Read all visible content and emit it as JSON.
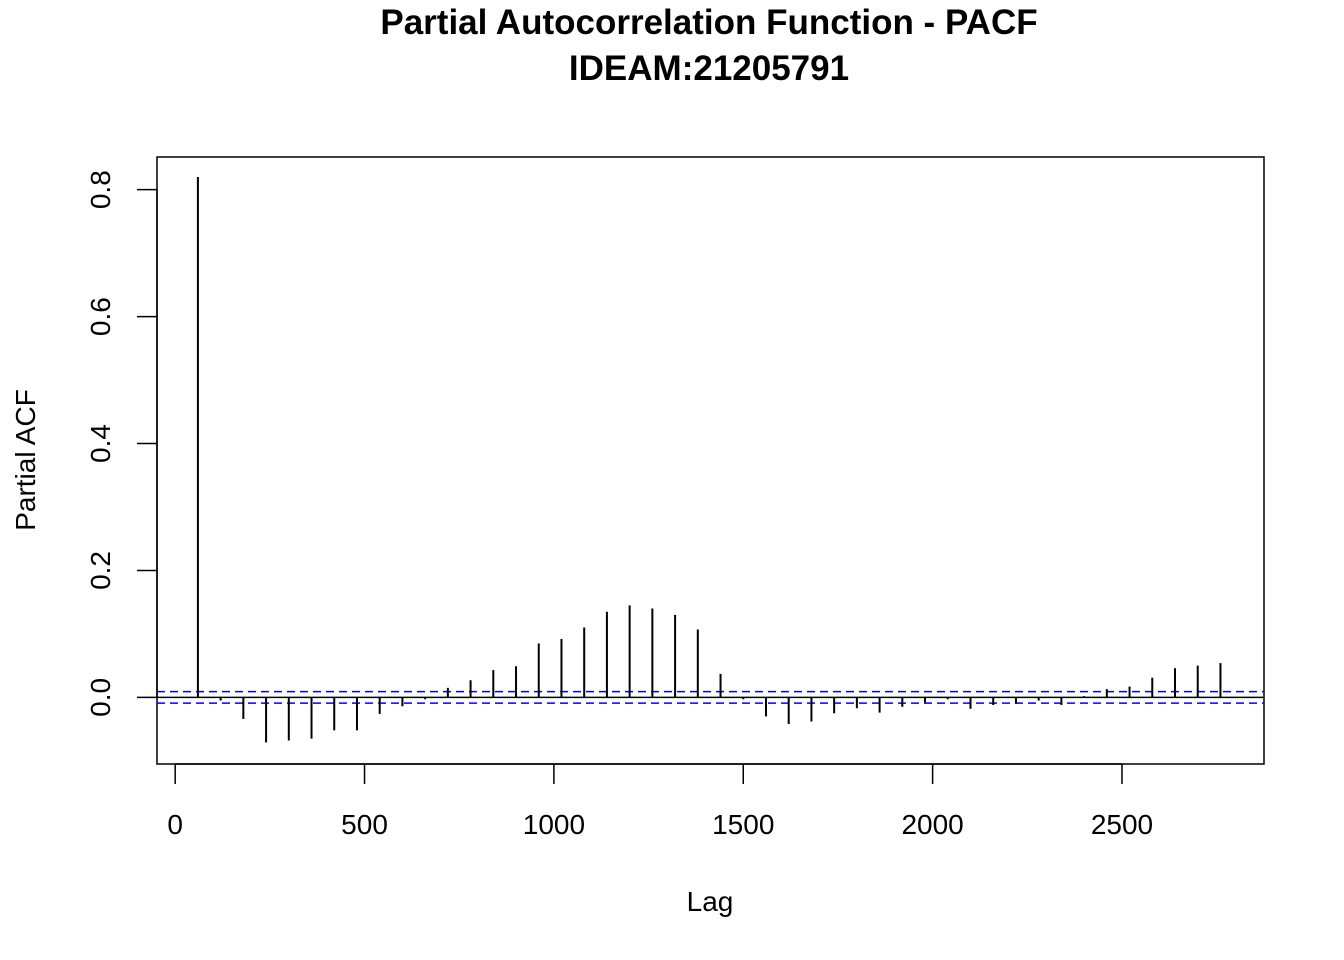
{
  "chart_data": {
    "type": "bar",
    "subtype": "pacf-spike",
    "title": "Partial Autocorrelation Function - PACF",
    "subtitle": "IDEAM:21205791",
    "xlabel": "Lag",
    "ylabel": "Partial ACF",
    "xlim": [
      -48,
      2875
    ],
    "ylim": [
      -0.105,
      0.8515
    ],
    "xticks": [
      0,
      500,
      1000,
      1500,
      2000,
      2500
    ],
    "xtick_labels": [
      "0",
      "500",
      "1000",
      "1500",
      "2000",
      "2500"
    ],
    "yticks": [
      0.0,
      0.2,
      0.4,
      0.6,
      0.8
    ],
    "ytick_labels": [
      "0.0",
      "0.2",
      "0.4",
      "0.6",
      "0.8"
    ],
    "confidence_band": [
      -0.009,
      0.009
    ],
    "band_color": "#0000ff",
    "spike_color": "#000000",
    "grid": false,
    "lags": [
      60,
      120,
      180,
      240,
      300,
      360,
      420,
      480,
      540,
      600,
      660,
      720,
      780,
      840,
      900,
      960,
      1020,
      1080,
      1140,
      1200,
      1260,
      1320,
      1380,
      1440,
      1500,
      1560,
      1620,
      1680,
      1740,
      1800,
      1860,
      1920,
      1980,
      2040,
      2100,
      2160,
      2220,
      2280,
      2340,
      2400,
      2460,
      2520,
      2580,
      2640,
      2700,
      2760
    ],
    "values": [
      0.82,
      -0.005,
      -0.034,
      -0.071,
      -0.068,
      -0.065,
      -0.052,
      -0.052,
      -0.026,
      -0.014,
      -0.003,
      0.015,
      0.027,
      0.043,
      0.049,
      0.085,
      0.092,
      0.11,
      0.135,
      0.145,
      0.14,
      0.13,
      0.107,
      0.037,
      -0.003,
      -0.03,
      -0.042,
      -0.038,
      -0.025,
      -0.017,
      -0.024,
      -0.015,
      -0.008,
      -0.003,
      -0.018,
      -0.012,
      -0.01,
      -0.005,
      -0.012,
      0.002,
      0.013,
      0.017,
      0.031,
      0.046,
      0.05,
      0.054
    ]
  }
}
